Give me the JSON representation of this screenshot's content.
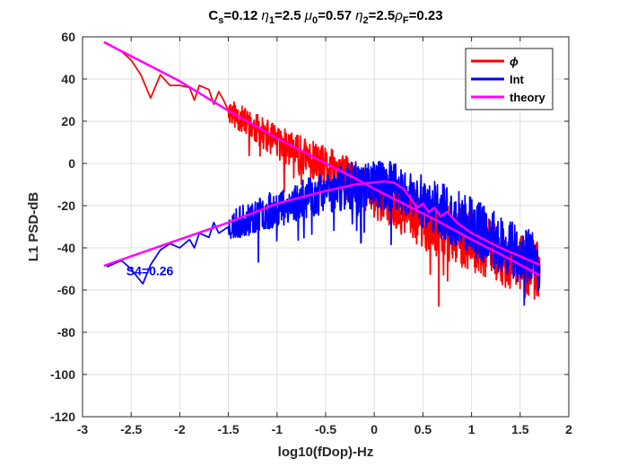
{
  "chart_data": {
    "type": "line",
    "title": {
      "parts": [
        {
          "text": "C",
          "style": "normal"
        },
        {
          "text": "s",
          "style": "sub"
        },
        {
          "text": "=0.12 ",
          "style": "normal"
        },
        {
          "text": "η",
          "style": "italic"
        },
        {
          "text": "1",
          "style": "sub"
        },
        {
          "text": "=2.5 ",
          "style": "normal"
        },
        {
          "text": "μ",
          "style": "italic"
        },
        {
          "text": "0",
          "style": "sub"
        },
        {
          "text": "=0.57 ",
          "style": "normal"
        },
        {
          "text": "η",
          "style": "italic"
        },
        {
          "text": "2",
          "style": "sub"
        },
        {
          "text": "=2.5",
          "style": "normal"
        },
        {
          "text": "ρ",
          "style": "italic"
        },
        {
          "text": "F",
          "style": "sub"
        },
        {
          "text": "=0.23",
          "style": "normal"
        }
      ]
    },
    "xlabel": "log10(fDop)-Hz",
    "ylabel": "L1 PSD-dB",
    "xlim": [
      -3,
      2
    ],
    "ylim": [
      -120,
      60
    ],
    "xticks": [
      -3,
      -2.5,
      -2,
      -1.5,
      -1,
      -0.5,
      0,
      0.5,
      1,
      1.5,
      2
    ],
    "xtick_labels": [
      "-3",
      "-2.5",
      "-2",
      "-1.5",
      "-1",
      "-0.5",
      "0",
      "0.5",
      "1",
      "1.5",
      "2"
    ],
    "yticks": [
      -120,
      -100,
      -80,
      -60,
      -40,
      -20,
      0,
      20,
      40,
      60
    ],
    "ytick_labels": [
      "-120",
      "-100",
      "-80",
      "-60",
      "-40",
      "-20",
      "0",
      "20",
      "40",
      "60"
    ],
    "grid": true,
    "legend": {
      "position": "top-right",
      "entries": [
        {
          "label": "ϕ",
          "color": "#ff0000",
          "italic": true
        },
        {
          "label": "Int",
          "color": "#0000ff",
          "italic": false
        },
        {
          "label": "theory",
          "color": "#ff00ff",
          "italic": false
        }
      ]
    },
    "annotation": {
      "text": "S4=0.26",
      "x": -2.55,
      "y": -53,
      "color": "#0000ff"
    },
    "colors": {
      "phi": "#ff0000",
      "int": "#0000ff",
      "theory": "#ff00ff",
      "axis": "#262626",
      "grid": "#dfdfdf"
    },
    "series": [
      {
        "name": "ϕ",
        "key": "phi",
        "color": "#ff0000",
        "stroke": 2.5,
        "model": {
          "x_start": -2.75,
          "x_end": 1.7,
          "step": 0.0035,
          "knots": [
            [
              -2.75,
              57
            ],
            [
              -1.5,
              25
            ],
            [
              -1.0,
              10
            ],
            [
              -0.5,
              -2
            ],
            [
              -0.2,
              -9
            ],
            [
              0.0,
              -15
            ],
            [
              0.3,
              -22
            ],
            [
              0.6,
              -30
            ],
            [
              1.0,
              -37
            ],
            [
              1.3,
              -43
            ],
            [
              1.7,
              -52
            ]
          ],
          "noise": [
            [
              -2.75,
              1.5
            ],
            [
              -2.2,
              3
            ],
            [
              -1.5,
              6
            ],
            [
              -1.0,
              8
            ],
            [
              -0.5,
              10
            ],
            [
              0.0,
              11
            ],
            [
              0.5,
              13
            ],
            [
              1.0,
              14
            ],
            [
              1.7,
              15
            ]
          ],
          "spike_prob": 0.02,
          "spike_depth": 16,
          "seed": 11
        },
        "sparse_points": [
          [
            -2.75,
            57
          ],
          [
            -2.6,
            53
          ],
          [
            -2.5,
            49
          ],
          [
            -2.4,
            42
          ],
          [
            -2.3,
            31
          ],
          [
            -2.2,
            42
          ],
          [
            -2.1,
            37
          ],
          [
            -2.0,
            37
          ],
          [
            -1.9,
            36
          ],
          [
            -1.85,
            30
          ],
          [
            -1.8,
            37
          ],
          [
            -1.7,
            35
          ],
          [
            -1.65,
            28
          ],
          [
            -1.6,
            34
          ],
          [
            -1.55,
            30
          ],
          [
            -1.5,
            25
          ]
        ]
      },
      {
        "name": "Int",
        "key": "int",
        "color": "#0000ff",
        "stroke": 2.5,
        "model": {
          "x_start": -2.75,
          "x_end": 1.7,
          "step": 0.0035,
          "knots": [
            [
              -2.75,
              -49
            ],
            [
              -1.5,
              -30
            ],
            [
              -1.0,
              -21
            ],
            [
              -0.5,
              -14
            ],
            [
              -0.2,
              -10
            ],
            [
              0.0,
              -9
            ],
            [
              0.3,
              -13
            ],
            [
              0.6,
              -20
            ],
            [
              1.0,
              -30
            ],
            [
              1.3,
              -38
            ],
            [
              1.7,
              -48
            ]
          ],
          "noise": [
            [
              -2.75,
              2
            ],
            [
              -2.2,
              4
            ],
            [
              -1.5,
              7
            ],
            [
              -1.0,
              9
            ],
            [
              -0.5,
              10
            ],
            [
              0.0,
              12
            ],
            [
              0.5,
              13
            ],
            [
              1.0,
              14
            ],
            [
              1.7,
              14
            ]
          ],
          "spike_prob": 0.02,
          "spike_depth": 16,
          "seed": 23
        },
        "sparse_points": [
          [
            -2.75,
            -49
          ],
          [
            -2.6,
            -46
          ],
          [
            -2.5,
            -50
          ],
          [
            -2.45,
            -53
          ],
          [
            -2.38,
            -57
          ],
          [
            -2.3,
            -48
          ],
          [
            -2.2,
            -41
          ],
          [
            -2.1,
            -38
          ],
          [
            -2.0,
            -40
          ],
          [
            -1.9,
            -36
          ],
          [
            -1.85,
            -40
          ],
          [
            -1.8,
            -33
          ],
          [
            -1.7,
            -35
          ],
          [
            -1.65,
            -28
          ],
          [
            -1.6,
            -33
          ],
          [
            -1.5,
            -30
          ]
        ]
      },
      {
        "name": "theory",
        "key": "theory",
        "color": "#ff00ff",
        "stroke": 2.5,
        "lines": [
          [
            [
              -2.78,
              57.5
            ],
            [
              -2.0,
              39
            ],
            [
              -1.5,
              25
            ],
            [
              -1.0,
              12
            ],
            [
              -0.5,
              0
            ],
            [
              -0.2,
              -7
            ],
            [
              0.0,
              -12
            ],
            [
              0.3,
              -19
            ],
            [
              0.6,
              -26
            ],
            [
              1.0,
              -36
            ],
            [
              1.3,
              -43
            ],
            [
              1.7,
              -53
            ]
          ],
          [
            [
              -2.78,
              -48.5
            ],
            [
              -2.0,
              -36
            ],
            [
              -1.5,
              -28
            ],
            [
              -1.0,
              -19
            ],
            [
              -0.5,
              -13
            ],
            [
              -0.2,
              -10
            ],
            [
              0.0,
              -9
            ],
            [
              0.1,
              -8.5
            ],
            [
              0.2,
              -9
            ],
            [
              0.3,
              -12
            ],
            [
              0.38,
              -17
            ],
            [
              0.44,
              -21
            ],
            [
              0.5,
              -19
            ],
            [
              0.56,
              -23
            ],
            [
              0.62,
              -21
            ],
            [
              0.68,
              -25
            ],
            [
              0.75,
              -23
            ],
            [
              0.85,
              -28
            ],
            [
              1.0,
              -33
            ],
            [
              1.3,
              -40
            ],
            [
              1.7,
              -48
            ]
          ]
        ]
      }
    ]
  }
}
